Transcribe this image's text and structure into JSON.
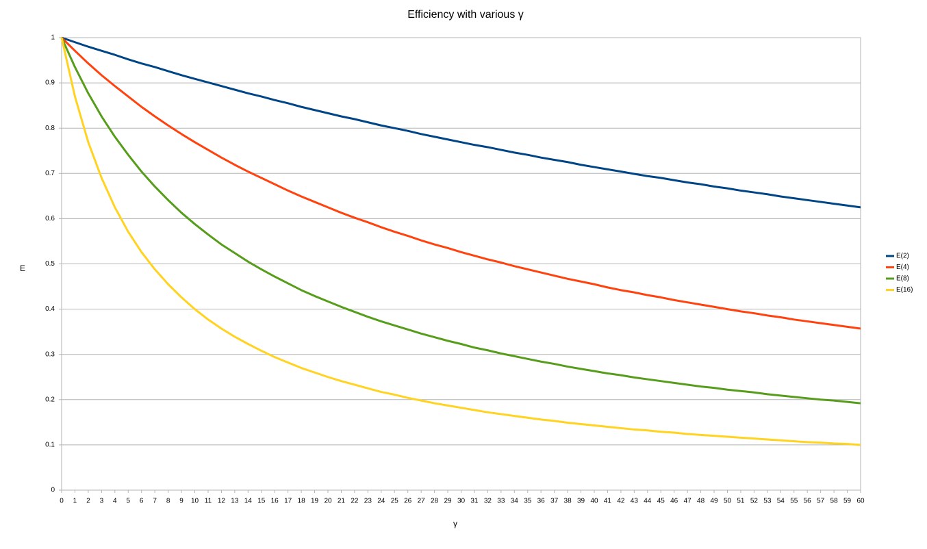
{
  "chart_data": {
    "type": "line",
    "title": "Efficiency with various γ",
    "x_label": "γ",
    "y_label": "E",
    "x": [
      0,
      1,
      2,
      3,
      4,
      5,
      6,
      7,
      8,
      9,
      10,
      11,
      12,
      13,
      14,
      15,
      16,
      17,
      18,
      19,
      20,
      21,
      22,
      23,
      24,
      25,
      26,
      27,
      28,
      29,
      30,
      31,
      32,
      33,
      34,
      35,
      36,
      37,
      38,
      39,
      40,
      41,
      42,
      43,
      44,
      45,
      46,
      47,
      48,
      49,
      50,
      51,
      52,
      53,
      54,
      55,
      56,
      57,
      58,
      59,
      60
    ],
    "series": [
      {
        "name": "E(2)",
        "color": "#004586",
        "values": [
          1,
          0.99,
          0.98,
          0.971,
          0.962,
          0.952,
          0.943,
          0.935,
          0.926,
          0.917,
          0.909,
          0.901,
          0.893,
          0.885,
          0.877,
          0.87,
          0.862,
          0.855,
          0.847,
          0.84,
          0.833,
          0.826,
          0.82,
          0.813,
          0.806,
          0.8,
          0.794,
          0.787,
          0.781,
          0.775,
          0.769,
          0.763,
          0.758,
          0.752,
          0.746,
          0.741,
          0.735,
          0.73,
          0.725,
          0.719,
          0.714,
          0.709,
          0.704,
          0.699,
          0.694,
          0.69,
          0.685,
          0.68,
          0.676,
          0.671,
          0.667,
          0.662,
          0.658,
          0.654,
          0.649,
          0.645,
          0.641,
          0.637,
          0.633,
          0.629,
          0.625
        ]
      },
      {
        "name": "E(4)",
        "color": "#ff420e",
        "values": [
          1,
          0.971,
          0.943,
          0.917,
          0.893,
          0.87,
          0.847,
          0.826,
          0.806,
          0.787,
          0.769,
          0.752,
          0.735,
          0.719,
          0.704,
          0.69,
          0.676,
          0.662,
          0.649,
          0.637,
          0.625,
          0.613,
          0.602,
          0.592,
          0.581,
          0.571,
          0.562,
          0.552,
          0.543,
          0.535,
          0.526,
          0.518,
          0.51,
          0.503,
          0.495,
          0.488,
          0.481,
          0.474,
          0.467,
          0.461,
          0.455,
          0.448,
          0.442,
          0.437,
          0.431,
          0.426,
          0.42,
          0.415,
          0.41,
          0.405,
          0.4,
          0.395,
          0.391,
          0.386,
          0.382,
          0.377,
          0.373,
          0.369,
          0.365,
          0.361,
          0.357
        ]
      },
      {
        "name": "E(8)",
        "color": "#579d1c",
        "values": [
          1,
          0.935,
          0.877,
          0.826,
          0.781,
          0.741,
          0.704,
          0.671,
          0.641,
          0.613,
          0.588,
          0.565,
          0.543,
          0.524,
          0.505,
          0.488,
          0.472,
          0.457,
          0.442,
          0.429,
          0.417,
          0.405,
          0.394,
          0.383,
          0.373,
          0.364,
          0.355,
          0.346,
          0.338,
          0.33,
          0.323,
          0.315,
          0.309,
          0.302,
          0.296,
          0.29,
          0.284,
          0.279,
          0.273,
          0.268,
          0.263,
          0.258,
          0.254,
          0.249,
          0.245,
          0.241,
          0.237,
          0.233,
          0.229,
          0.226,
          0.222,
          0.219,
          0.216,
          0.212,
          0.209,
          0.206,
          0.203,
          0.2,
          0.198,
          0.195,
          0.192
        ]
      },
      {
        "name": "E(16)",
        "color": "#ffd320",
        "values": [
          1,
          0.87,
          0.769,
          0.69,
          0.625,
          0.571,
          0.526,
          0.488,
          0.455,
          0.426,
          0.4,
          0.377,
          0.357,
          0.339,
          0.323,
          0.308,
          0.294,
          0.282,
          0.27,
          0.26,
          0.25,
          0.241,
          0.233,
          0.225,
          0.217,
          0.211,
          0.204,
          0.198,
          0.192,
          0.187,
          0.182,
          0.177,
          0.172,
          0.168,
          0.164,
          0.16,
          0.156,
          0.153,
          0.149,
          0.146,
          0.143,
          0.14,
          0.137,
          0.134,
          0.132,
          0.129,
          0.127,
          0.124,
          0.122,
          0.12,
          0.118,
          0.116,
          0.114,
          0.112,
          0.11,
          0.108,
          0.106,
          0.105,
          0.103,
          0.102,
          0.1
        ]
      }
    ],
    "xlim": [
      0,
      60
    ],
    "xticks": [
      0,
      1,
      2,
      3,
      4,
      5,
      6,
      7,
      8,
      9,
      10,
      11,
      12,
      13,
      14,
      15,
      16,
      17,
      18,
      19,
      20,
      21,
      22,
      23,
      24,
      25,
      26,
      27,
      28,
      29,
      30,
      31,
      32,
      33,
      34,
      35,
      36,
      37,
      38,
      39,
      40,
      41,
      42,
      43,
      44,
      45,
      46,
      47,
      48,
      49,
      50,
      51,
      52,
      53,
      54,
      55,
      56,
      57,
      58,
      59,
      60
    ],
    "ylim": [
      0,
      1
    ],
    "yticks": [
      0,
      0.1,
      0.2,
      0.3,
      0.4,
      0.5,
      0.6,
      0.7,
      0.8,
      0.9,
      1
    ],
    "grid": true,
    "legend": "right"
  }
}
